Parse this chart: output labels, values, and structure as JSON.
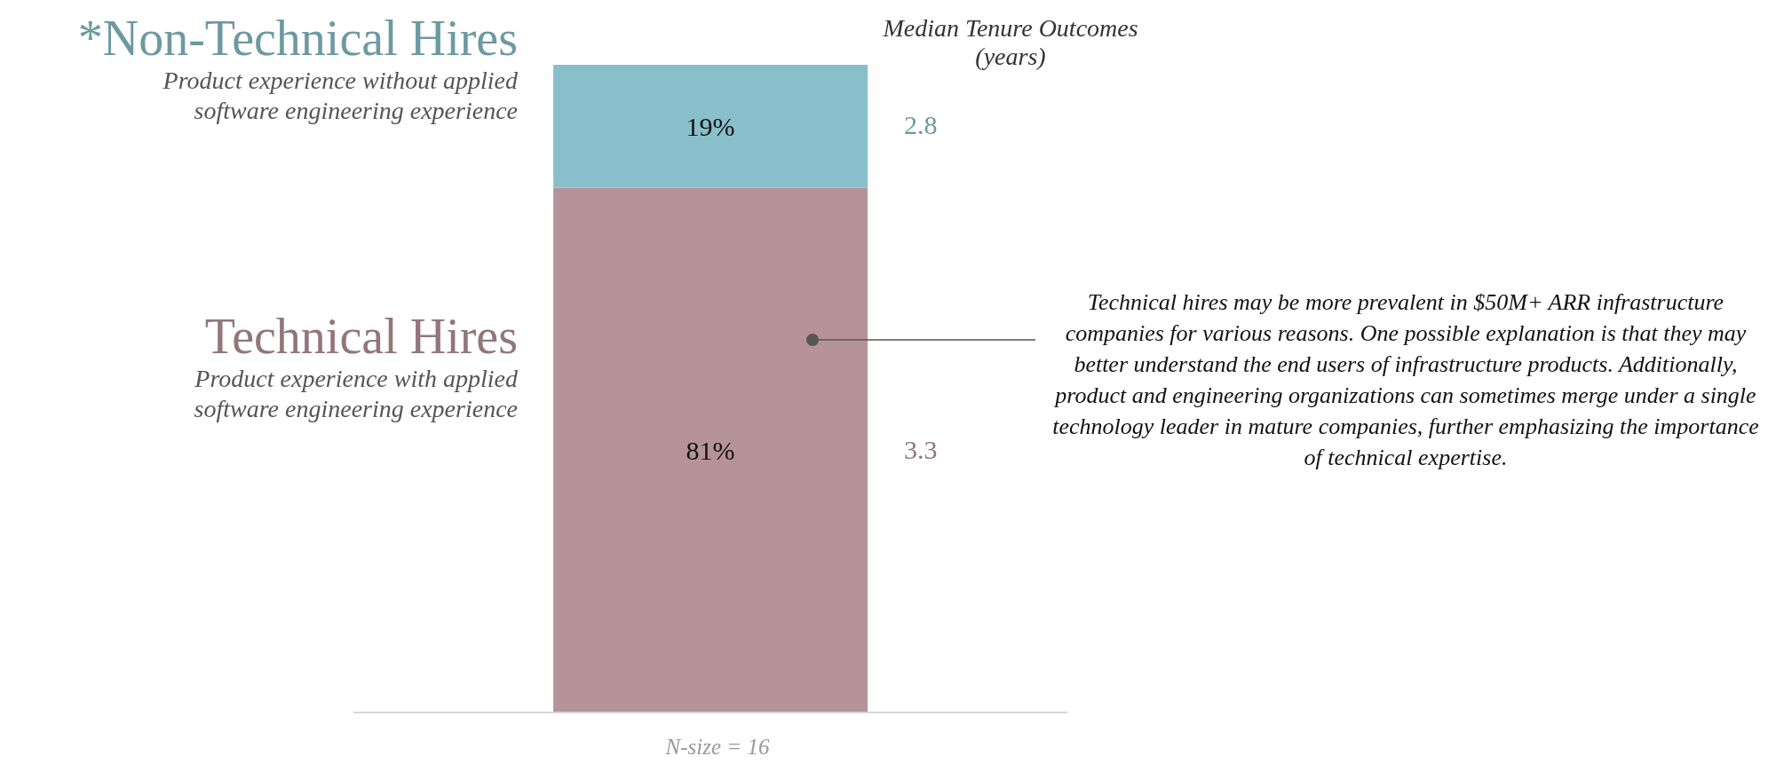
{
  "chart_data": {
    "type": "bar",
    "stacked": true,
    "title": "Median Tenure Outcomes (years)",
    "categories": [
      null
    ],
    "series": [
      {
        "name": "Technical Hires",
        "color": "#b69398",
        "values": [
          81
        ],
        "value_labels": [
          "81%"
        ]
      },
      {
        "name": "*Non-Technical Hires",
        "color": "#88bfca",
        "values": [
          19
        ],
        "value_labels": [
          "19%"
        ]
      }
    ],
    "annotations": [
      "Product experience with applied software engineering experience",
      "Product experience without applied software engineering experience",
      "3.3",
      "2.8",
      "Technical hires may be more prevalent in $50M+ ARR infrastructure companies for various reasons. One possible explanation is that they may better understand the end users of infrastructure products. Additionally, product and engineering organizations can sometimes merge under a single technology leader in mature companies, further emphasizing the importance of technical expertise.",
      "N-size = 16"
    ],
    "legend": false,
    "grid": false
  }
}
